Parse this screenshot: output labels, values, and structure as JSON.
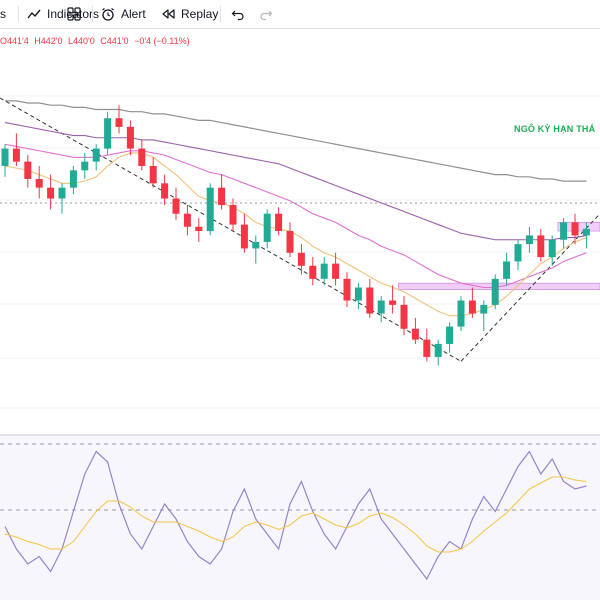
{
  "toolbar": {
    "partial_label": "s",
    "indicators_label": "Indicators",
    "alert_label": "Alert",
    "replay_label": "Replay"
  },
  "ohlc": {
    "open": "O441'4",
    "high": "H442'0",
    "low": "L440'0",
    "close": "C441'0",
    "change": "−0'4 (−0.11%)"
  },
  "annotation": "NGÔ KỲ HẠN THÁ",
  "colors": {
    "up": "#22ab94",
    "down": "#f23645",
    "ma_fast": "#f0c27a",
    "ma_mid": "#e070d0",
    "ma_slow": "#9b5fae",
    "ma_long": "#909090",
    "zone": "#e3a6f0",
    "osc_line": "#9585c8",
    "osc_signal": "#f5c542"
  },
  "chart_data": [
    {
      "type": "candlestick",
      "series": [
        {
          "name": "price",
          "values": "52 OHLC candles, downtrend then recovery"
        },
        {
          "name": "ma",
          "values": "4 moving averages"
        }
      ],
      "candles": [
        [
          150,
          160,
          145,
          158
        ],
        [
          158,
          165,
          150,
          152
        ],
        [
          152,
          155,
          140,
          144
        ],
        [
          144,
          150,
          135,
          140
        ],
        [
          140,
          146,
          130,
          135
        ],
        [
          135,
          142,
          128,
          140
        ],
        [
          140,
          150,
          137,
          148
        ],
        [
          148,
          156,
          144,
          152
        ],
        [
          152,
          160,
          148,
          158
        ],
        [
          158,
          175,
          155,
          172
        ],
        [
          172,
          178,
          165,
          168
        ],
        [
          168,
          171,
          155,
          158
        ],
        [
          158,
          162,
          148,
          150
        ],
        [
          150,
          154,
          140,
          142
        ],
        [
          142,
          146,
          132,
          135
        ],
        [
          135,
          140,
          125,
          128
        ],
        [
          128,
          132,
          118,
          122
        ],
        [
          122,
          126,
          115,
          120
        ],
        [
          120,
          142,
          118,
          140
        ],
        [
          140,
          146,
          130,
          132
        ],
        [
          132,
          135,
          120,
          123
        ],
        [
          123,
          128,
          110,
          112
        ],
        [
          112,
          118,
          105,
          115
        ],
        [
          115,
          130,
          112,
          128
        ],
        [
          128,
          131,
          118,
          120
        ],
        [
          120,
          124,
          108,
          110
        ],
        [
          110,
          114,
          100,
          104
        ],
        [
          104,
          108,
          95,
          98
        ],
        [
          98,
          108,
          95,
          105
        ],
        [
          105,
          110,
          95,
          98
        ],
        [
          98,
          101,
          85,
          88
        ],
        [
          88,
          96,
          84,
          94
        ],
        [
          94,
          98,
          80,
          82
        ],
        [
          82,
          90,
          78,
          88
        ],
        [
          88,
          95,
          82,
          86
        ],
        [
          86,
          90,
          72,
          75
        ],
        [
          75,
          80,
          68,
          70
        ],
        [
          70,
          75,
          60,
          62
        ],
        [
          62,
          70,
          58,
          68
        ],
        [
          68,
          78,
          64,
          76
        ],
        [
          76,
          90,
          74,
          88
        ],
        [
          88,
          94,
          80,
          82
        ],
        [
          82,
          88,
          74,
          86
        ],
        [
          86,
          100,
          84,
          98
        ],
        [
          98,
          110,
          95,
          106
        ],
        [
          106,
          116,
          102,
          114
        ],
        [
          114,
          122,
          110,
          118
        ],
        [
          118,
          121,
          106,
          108
        ],
        [
          108,
          118,
          104,
          116
        ],
        [
          116,
          126,
          112,
          124
        ],
        [
          124,
          128,
          114,
          118
        ],
        [
          118,
          124,
          112,
          121
        ]
      ],
      "ma_fast": [
        150,
        149,
        148,
        146,
        144,
        142,
        142,
        143,
        145,
        150,
        154,
        156,
        156,
        154,
        150,
        146,
        141,
        136,
        134,
        133,
        131,
        128,
        124,
        122,
        121,
        120,
        117,
        113,
        110,
        108,
        105,
        102,
        99,
        96,
        94,
        92,
        89,
        86,
        83,
        81,
        81,
        82,
        84,
        86,
        90,
        95,
        100,
        105,
        108,
        112,
        115,
        117
      ],
      "ma_mid": [
        160,
        159,
        158,
        157,
        156,
        155,
        154,
        154,
        154,
        155,
        156,
        157,
        157,
        156,
        155,
        153,
        151,
        149,
        147,
        146,
        144,
        142,
        140,
        138,
        136,
        134,
        131,
        128,
        126,
        124,
        121,
        118,
        116,
        113,
        111,
        109,
        106,
        103,
        100,
        98,
        96,
        95,
        94,
        94,
        95,
        97,
        99,
        101,
        103,
        106,
        108,
        110
      ],
      "ma_slow": [
        170,
        169,
        168,
        167,
        166,
        165,
        164,
        164,
        163,
        163,
        163,
        163,
        162,
        162,
        161,
        160,
        159,
        158,
        157,
        156,
        155,
        154,
        153,
        152,
        151,
        149,
        147,
        145,
        143,
        141,
        139,
        137,
        135,
        133,
        131,
        129,
        127,
        125,
        123,
        121,
        119,
        118,
        117,
        116,
        116,
        116,
        116,
        116,
        116,
        117,
        117,
        118
      ],
      "ma_long": [
        180,
        180,
        179,
        179,
        178,
        178,
        177,
        177,
        176,
        176,
        176,
        175,
        175,
        174,
        174,
        173,
        172,
        171,
        171,
        170,
        169,
        168,
        167,
        166,
        165,
        164,
        163,
        162,
        161,
        160,
        159,
        158,
        157,
        156,
        155,
        154,
        153,
        152,
        151,
        150,
        149,
        148,
        147,
        146,
        146,
        145,
        145,
        144,
        144,
        143,
        143,
        143
      ],
      "zones": [
        {
          "from": 49,
          "to": 52,
          "low": 120,
          "high": 124
        },
        {
          "from": 35,
          "to": 52,
          "low": 93,
          "high": 96
        }
      ]
    },
    {
      "type": "line",
      "series": [
        {
          "name": "oscillator",
          "values": [
            45,
            30,
            20,
            25,
            15,
            30,
            55,
            80,
            95,
            88,
            60,
            40,
            30,
            45,
            60,
            50,
            35,
            25,
            20,
            30,
            55,
            70,
            50,
            40,
            30,
            60,
            75,
            55,
            40,
            30,
            45,
            60,
            70,
            50,
            40,
            30,
            20,
            10,
            25,
            35,
            30,
            50,
            65,
            55,
            70,
            85,
            95,
            80,
            90,
            75,
            70,
            72
          ]
        },
        {
          "name": "signal",
          "values": [
            40,
            38,
            35,
            33,
            30,
            30,
            35,
            45,
            55,
            62,
            62,
            58,
            52,
            48,
            48,
            48,
            45,
            42,
            38,
            35,
            38,
            45,
            48,
            46,
            43,
            46,
            52,
            54,
            50,
            46,
            44,
            47,
            52,
            54,
            51,
            46,
            40,
            32,
            28,
            28,
            30,
            35,
            42,
            48,
            54,
            62,
            70,
            74,
            78,
            78,
            76,
            75
          ]
        }
      ],
      "ylim": [
        0,
        100
      ]
    }
  ]
}
